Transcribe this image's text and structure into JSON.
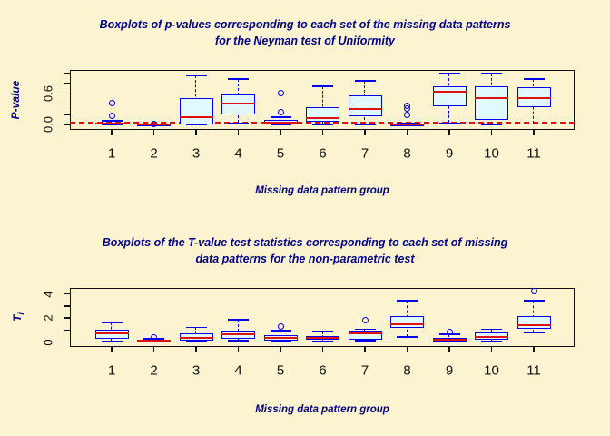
{
  "colors": {
    "background": "#FCF3D0",
    "title_text": "#00008B",
    "axis_label_text": "#00008B",
    "tick_text": "#111111",
    "frame": "#111111",
    "box_fill": "#E0F8FF",
    "box_border": "#0000EE",
    "median_line": "#DE1010",
    "reference_line": "#DE1010"
  },
  "chart_data": [
    {
      "type": "boxplot",
      "title_lines": [
        "Boxplots of p-values corresponding to each set of the missing data patterns",
        "for the Neyman test of Uniformity"
      ],
      "xlabel": "Missing data pattern group",
      "ylabel": "P-value",
      "ylabel_sub": "",
      "categories": [
        "1",
        "2",
        "3",
        "4",
        "5",
        "6",
        "7",
        "8",
        "9",
        "10",
        "11"
      ],
      "ylim": [
        -0.08,
        1.045
      ],
      "yticks": [
        {
          "v": 0.0,
          "label": "0.0"
        },
        {
          "v": 0.2,
          "label": ""
        },
        {
          "v": 0.4,
          "label": ""
        },
        {
          "v": 0.6,
          "label": "0.6"
        },
        {
          "v": 0.8,
          "label": ""
        },
        {
          "v": 1.0,
          "label": ""
        }
      ],
      "reference_line": {
        "y": 0.05,
        "style": "dashed",
        "color": "#DE1010"
      },
      "boxes": [
        {
          "low": 0.0,
          "q1": 0.0,
          "median": 0.02,
          "q3": 0.045,
          "high": 0.075,
          "outliers": [
            0.17,
            0.42
          ]
        },
        {
          "low": 0.0,
          "q1": 0.0,
          "median": 0.005,
          "q3": 0.012,
          "high": 0.02,
          "outliers": [
            0.025
          ]
        },
        {
          "low": 0.005,
          "q1": 0.01,
          "median": 0.145,
          "q3": 0.51,
          "high": 0.95,
          "outliers": []
        },
        {
          "low": 0.035,
          "q1": 0.2,
          "median": 0.42,
          "q3": 0.59,
          "high": 0.89,
          "outliers": []
        },
        {
          "low": 0.0,
          "q1": 0.01,
          "median": 0.035,
          "q3": 0.1,
          "high": 0.145,
          "outliers": [
            0.25,
            0.62
          ]
        },
        {
          "low": 0.005,
          "q1": 0.065,
          "median": 0.13,
          "q3": 0.345,
          "high": 0.75,
          "outliers": []
        },
        {
          "low": 0.005,
          "q1": 0.16,
          "median": 0.305,
          "q3": 0.565,
          "high": 0.85,
          "outliers": []
        },
        {
          "low": 0.0,
          "q1": 0.0,
          "median": 0.01,
          "q3": 0.022,
          "high": 0.03,
          "outliers": [
            0.19,
            0.32,
            0.37
          ]
        },
        {
          "low": 0.035,
          "q1": 0.36,
          "median": 0.635,
          "q3": 0.75,
          "high": 1.0,
          "outliers": []
        },
        {
          "low": 0.005,
          "q1": 0.1,
          "median": 0.51,
          "q3": 0.75,
          "high": 1.0,
          "outliers": []
        },
        {
          "low": 0.02,
          "q1": 0.345,
          "median": 0.52,
          "q3": 0.72,
          "high": 0.89,
          "outliers": []
        }
      ]
    },
    {
      "type": "boxplot",
      "title_lines": [
        "Boxplots of the T-value test statistics corresponding to each set of missing",
        "data patterns for the non-parametric test"
      ],
      "xlabel": "Missing data pattern group",
      "ylabel": "T",
      "ylabel_sub": "i",
      "categories": [
        "1",
        "2",
        "3",
        "4",
        "5",
        "6",
        "7",
        "8",
        "9",
        "10",
        "11"
      ],
      "ylim": [
        -0.33,
        4.42
      ],
      "yticks": [
        {
          "v": 0,
          "label": "0"
        },
        {
          "v": 1,
          "label": ""
        },
        {
          "v": 2,
          "label": "2"
        },
        {
          "v": 3,
          "label": ""
        },
        {
          "v": 4,
          "label": "4"
        }
      ],
      "reference_line": null,
      "boxes": [
        {
          "low": 0.05,
          "q1": 0.3,
          "median": 0.75,
          "q3": 1.05,
          "high": 1.62,
          "outliers": []
        },
        {
          "low": 0.02,
          "q1": 0.08,
          "median": 0.15,
          "q3": 0.22,
          "high": 0.28,
          "outliers": [
            0.42
          ]
        },
        {
          "low": 0.05,
          "q1": 0.12,
          "median": 0.35,
          "q3": 0.7,
          "high": 1.22,
          "outliers": []
        },
        {
          "low": 0.1,
          "q1": 0.25,
          "median": 0.67,
          "q3": 0.97,
          "high": 1.84,
          "outliers": []
        },
        {
          "low": 0.05,
          "q1": 0.12,
          "median": 0.37,
          "q3": 0.6,
          "high": 0.97,
          "outliers": [
            1.3
          ]
        },
        {
          "low": 0.08,
          "q1": 0.18,
          "median": 0.32,
          "q3": 0.47,
          "high": 0.87,
          "outliers": []
        },
        {
          "low": 0.1,
          "q1": 0.2,
          "median": 0.75,
          "q3": 0.92,
          "high": 1.05,
          "outliers": [
            1.84
          ]
        },
        {
          "low": 0.42,
          "q1": 1.17,
          "median": 1.47,
          "q3": 2.17,
          "high": 3.42,
          "outliers": []
        },
        {
          "low": 0.02,
          "q1": 0.08,
          "median": 0.2,
          "q3": 0.32,
          "high": 0.67,
          "outliers": [
            0.87
          ]
        },
        {
          "low": 0.05,
          "q1": 0.2,
          "median": 0.42,
          "q3": 0.8,
          "high": 1.05,
          "outliers": []
        },
        {
          "low": 0.8,
          "q1": 1.12,
          "median": 1.42,
          "q3": 2.17,
          "high": 3.42,
          "outliers": [
            4.2
          ]
        }
      ]
    }
  ]
}
